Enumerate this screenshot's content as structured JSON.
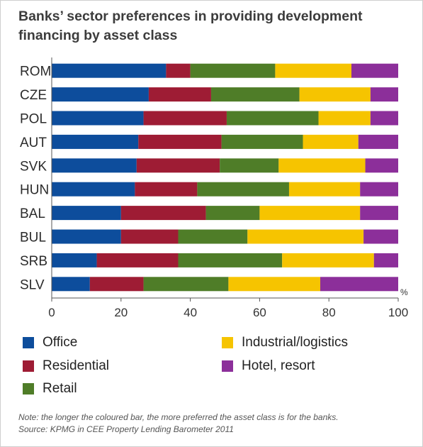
{
  "title": "Banks’ sector preferences in providing development financing by asset class",
  "note_line1": "Note: the longer the coloured bar, the more preferred the asset class is for the banks.",
  "note_line2": "Source: KPMG in CEE Property Lending Barometer 2011",
  "chart_data": {
    "type": "bar",
    "orientation": "horizontal",
    "stacked": true,
    "categories": [
      "ROM",
      "CZE",
      "POL",
      "AUT",
      "SVK",
      "HUN",
      "BAL",
      "BUL",
      "SRB",
      "SLV"
    ],
    "series": [
      {
        "name": "Office",
        "color": "#0d4d9c",
        "values": [
          33,
          28,
          26.5,
          25,
          24.5,
          24,
          20,
          20,
          13,
          11
        ]
      },
      {
        "name": "Residential",
        "color": "#9e1c34",
        "values": [
          7,
          18,
          24,
          24,
          24,
          18,
          24.5,
          16.5,
          23.5,
          15.5
        ]
      },
      {
        "name": "Retail",
        "color": "#4f7d28",
        "values": [
          24.5,
          25.5,
          26.5,
          23.5,
          17,
          26.5,
          15.5,
          20,
          30,
          24.5
        ]
      },
      {
        "name": "Industrial/logistics",
        "color": "#f6c400",
        "values": [
          22,
          20.5,
          15,
          16,
          25,
          20.5,
          29,
          33.5,
          26.5,
          26.5
        ]
      },
      {
        "name": "Hotel, resort",
        "color": "#8c2f9a",
        "values": [
          13.5,
          8,
          8,
          11.5,
          9.5,
          11,
          11,
          10,
          7,
          22.5
        ]
      }
    ],
    "x_ticks": [
      "0",
      "20",
      "40",
      "60",
      "80",
      "100"
    ],
    "x_unit": "%",
    "xlim": [
      0,
      100
    ],
    "grid": false,
    "legend_position": "bottom"
  }
}
